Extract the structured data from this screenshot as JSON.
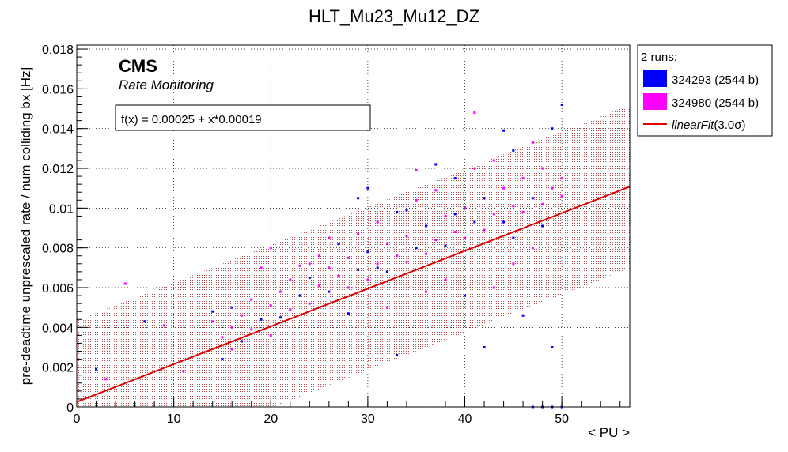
{
  "chart_data": {
    "type": "scatter",
    "title": "HLT_Mu23_Mu12_DZ",
    "xlabel": "< PU >",
    "ylabel": "pre-deadtime unprescaled rate / num colliding bx [Hz]",
    "xlim": [
      0,
      57
    ],
    "ylim": [
      0,
      0.0182
    ],
    "xticks": [
      "0",
      "10",
      "20",
      "30",
      "40",
      "50"
    ],
    "yticks": [
      "0",
      "0.002",
      "0.004",
      "0.006",
      "0.008",
      "0.01",
      "0.012",
      "0.014",
      "0.016",
      "0.018"
    ],
    "grid": true,
    "legend_position": "top-right (outside plot)",
    "legend_title": "2 runs:",
    "series": [
      {
        "name": "324293 (2544 b)",
        "color": "#0000ff"
      },
      {
        "name": "324980 (2544 b)",
        "color": "#ff00ff"
      }
    ],
    "fit": {
      "name": "linearFit(3.0σ)",
      "label_main": "linearFit",
      "label_suffix": "(3.0σ)",
      "color": "#dd0000",
      "intercept": 0.00025,
      "slope": 0.00019,
      "band_half_width": 0.0041,
      "band_color": "#8b0000",
      "equation": "f(x) = 0.00025 + x*0.00019"
    },
    "points": [
      {
        "x": 2,
        "y": 0.0019,
        "s": 0
      },
      {
        "x": 3,
        "y": 0.0014,
        "s": 1
      },
      {
        "x": 5,
        "y": 0.0062,
        "s": 1
      },
      {
        "x": 7,
        "y": 0.0043,
        "s": 0
      },
      {
        "x": 9,
        "y": 0.0041,
        "s": 1
      },
      {
        "x": 11,
        "y": 0.0018,
        "s": 1
      },
      {
        "x": 14,
        "y": 0.0048,
        "s": 0
      },
      {
        "x": 14,
        "y": 0.0043,
        "s": 1
      },
      {
        "x": 15,
        "y": 0.0035,
        "s": 1
      },
      {
        "x": 15,
        "y": 0.0024,
        "s": 0
      },
      {
        "x": 16,
        "y": 0.004,
        "s": 1
      },
      {
        "x": 16,
        "y": 0.0029,
        "s": 1
      },
      {
        "x": 17,
        "y": 0.0046,
        "s": 1
      },
      {
        "x": 17,
        "y": 0.0033,
        "s": 0
      },
      {
        "x": 18,
        "y": 0.0054,
        "s": 1
      },
      {
        "x": 18,
        "y": 0.0039,
        "s": 1
      },
      {
        "x": 19,
        "y": 0.0044,
        "s": 0
      },
      {
        "x": 20,
        "y": 0.0051,
        "s": 1
      },
      {
        "x": 20,
        "y": 0.0036,
        "s": 1
      },
      {
        "x": 21,
        "y": 0.0058,
        "s": 1
      },
      {
        "x": 21,
        "y": 0.0045,
        "s": 0
      },
      {
        "x": 22,
        "y": 0.0064,
        "s": 1
      },
      {
        "x": 22,
        "y": 0.0049,
        "s": 1
      },
      {
        "x": 23,
        "y": 0.0056,
        "s": 0
      },
      {
        "x": 23,
        "y": 0.0071,
        "s": 1
      },
      {
        "x": 24,
        "y": 0.0052,
        "s": 1
      },
      {
        "x": 24,
        "y": 0.0065,
        "s": 0
      },
      {
        "x": 25,
        "y": 0.0061,
        "s": 1
      },
      {
        "x": 25,
        "y": 0.0076,
        "s": 1
      },
      {
        "x": 26,
        "y": 0.0058,
        "s": 0
      },
      {
        "x": 26,
        "y": 0.007,
        "s": 1
      },
      {
        "x": 27,
        "y": 0.0066,
        "s": 1
      },
      {
        "x": 27,
        "y": 0.0082,
        "s": 0
      },
      {
        "x": 28,
        "y": 0.006,
        "s": 1
      },
      {
        "x": 28,
        "y": 0.0075,
        "s": 1
      },
      {
        "x": 29,
        "y": 0.0069,
        "s": 0
      },
      {
        "x": 29,
        "y": 0.0087,
        "s": 1
      },
      {
        "x": 30,
        "y": 0.0064,
        "s": 1
      },
      {
        "x": 30,
        "y": 0.0078,
        "s": 0
      },
      {
        "x": 31,
        "y": 0.0072,
        "s": 1
      },
      {
        "x": 31,
        "y": 0.0093,
        "s": 1
      },
      {
        "x": 32,
        "y": 0.0068,
        "s": 0
      },
      {
        "x": 32,
        "y": 0.0082,
        "s": 1
      },
      {
        "x": 33,
        "y": 0.0076,
        "s": 1
      },
      {
        "x": 33,
        "y": 0.0098,
        "s": 0
      },
      {
        "x": 34,
        "y": 0.0073,
        "s": 1
      },
      {
        "x": 34,
        "y": 0.0086,
        "s": 1
      },
      {
        "x": 35,
        "y": 0.008,
        "s": 0
      },
      {
        "x": 35,
        "y": 0.0104,
        "s": 1
      },
      {
        "x": 36,
        "y": 0.0077,
        "s": 1
      },
      {
        "x": 36,
        "y": 0.0091,
        "s": 0
      },
      {
        "x": 37,
        "y": 0.0084,
        "s": 1
      },
      {
        "x": 37,
        "y": 0.0109,
        "s": 1
      },
      {
        "x": 38,
        "y": 0.0081,
        "s": 0
      },
      {
        "x": 38,
        "y": 0.0096,
        "s": 1
      },
      {
        "x": 39,
        "y": 0.0088,
        "s": 1
      },
      {
        "x": 39,
        "y": 0.0115,
        "s": 0
      },
      {
        "x": 40,
        "y": 0.0085,
        "s": 1
      },
      {
        "x": 40,
        "y": 0.01,
        "s": 1
      },
      {
        "x": 41,
        "y": 0.0093,
        "s": 0
      },
      {
        "x": 41,
        "y": 0.012,
        "s": 1
      },
      {
        "x": 42,
        "y": 0.0089,
        "s": 1
      },
      {
        "x": 42,
        "y": 0.0105,
        "s": 0
      },
      {
        "x": 43,
        "y": 0.0097,
        "s": 1
      },
      {
        "x": 43,
        "y": 0.0124,
        "s": 1
      },
      {
        "x": 44,
        "y": 0.0093,
        "s": 0
      },
      {
        "x": 44,
        "y": 0.011,
        "s": 1
      },
      {
        "x": 45,
        "y": 0.0101,
        "s": 1
      },
      {
        "x": 45,
        "y": 0.0129,
        "s": 0
      },
      {
        "x": 46,
        "y": 0.0098,
        "s": 1
      },
      {
        "x": 46,
        "y": 0.0115,
        "s": 1
      },
      {
        "x": 47,
        "y": 0.0105,
        "s": 0
      },
      {
        "x": 47,
        "y": 0.0133,
        "s": 1
      },
      {
        "x": 48,
        "y": 0.0102,
        "s": 1
      },
      {
        "x": 48,
        "y": 0.0091,
        "s": 0
      },
      {
        "x": 49,
        "y": 0.011,
        "s": 1
      },
      {
        "x": 49,
        "y": 0.014,
        "s": 0
      },
      {
        "x": 50,
        "y": 0.0106,
        "s": 1
      },
      {
        "x": 50,
        "y": 0.0152,
        "s": 0
      },
      {
        "x": 41,
        "y": 0.0148,
        "s": 1
      },
      {
        "x": 45,
        "y": 0.0072,
        "s": 1
      },
      {
        "x": 40,
        "y": 0.0056,
        "s": 0
      },
      {
        "x": 38,
        "y": 0.0064,
        "s": 1
      },
      {
        "x": 43,
        "y": 0.006,
        "s": 1
      },
      {
        "x": 46,
        "y": 0.0046,
        "s": 0
      },
      {
        "x": 49,
        "y": 0.003,
        "s": 0
      },
      {
        "x": 36,
        "y": 0.0058,
        "s": 1
      },
      {
        "x": 32,
        "y": 0.005,
        "s": 1
      },
      {
        "x": 28,
        "y": 0.0047,
        "s": 0
      },
      {
        "x": 33,
        "y": 0.0026,
        "s": 0
      },
      {
        "x": 42,
        "y": 0.003,
        "s": 0
      },
      {
        "x": 47,
        "y": 0.0,
        "s": 0
      },
      {
        "x": 48,
        "y": 0.0,
        "s": 0
      },
      {
        "x": 49,
        "y": 0.0,
        "s": 0
      },
      {
        "x": 50,
        "y": 0.0,
        "s": 0
      },
      {
        "x": 35,
        "y": 0.0119,
        "s": 1
      },
      {
        "x": 37,
        "y": 0.0122,
        "s": 0
      },
      {
        "x": 44,
        "y": 0.0139,
        "s": 0
      },
      {
        "x": 29,
        "y": 0.0105,
        "s": 0
      },
      {
        "x": 30,
        "y": 0.011,
        "s": 0
      },
      {
        "x": 20,
        "y": 0.008,
        "s": 1
      },
      {
        "x": 19,
        "y": 0.007,
        "s": 1
      },
      {
        "x": 16,
        "y": 0.005,
        "s": 0
      },
      {
        "x": 24,
        "y": 0.0072,
        "s": 1
      },
      {
        "x": 26,
        "y": 0.0085,
        "s": 1
      },
      {
        "x": 31,
        "y": 0.007,
        "s": 0
      },
      {
        "x": 39,
        "y": 0.0097,
        "s": 0
      },
      {
        "x": 34,
        "y": 0.0099,
        "s": 0
      },
      {
        "x": 45,
        "y": 0.0085,
        "s": 0
      },
      {
        "x": 47,
        "y": 0.008,
        "s": 1
      },
      {
        "x": 50,
        "y": 0.0115,
        "s": 1
      },
      {
        "x": 48,
        "y": 0.012,
        "s": 1
      }
    ]
  },
  "annotations": {
    "brand": "CMS",
    "subtitle": "Rate Monitoring"
  }
}
